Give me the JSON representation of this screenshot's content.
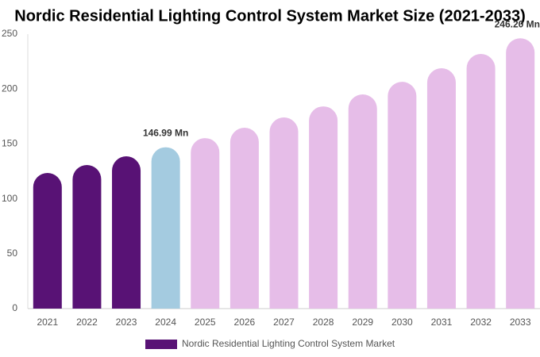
{
  "chart_data": {
    "type": "bar",
    "title": "Nordic Residential Lighting Control System Market Size (2021-2033)",
    "categories": [
      "2021",
      "2022",
      "2023",
      "2024",
      "2025",
      "2026",
      "2027",
      "2028",
      "2029",
      "2030",
      "2031",
      "2032",
      "2033"
    ],
    "series": [
      {
        "name": "Nordic Residential Lighting Control System Market",
        "color": "#581275",
        "values": [
          123.6,
          130.8,
          138.7,
          146.99,
          155.3,
          164.7,
          174.1,
          184.2,
          195.1,
          206.6,
          218.9,
          231.9,
          246.2
        ],
        "value_labels": [
          null,
          null,
          null,
          "146.99 Mn",
          null,
          null,
          null,
          null,
          null,
          null,
          null,
          null,
          "246.20 Mn"
        ],
        "colors": [
          "#581275",
          "#581275",
          "#581275",
          "#a4cbe0",
          "#e6bde8",
          "#e6bde8",
          "#e6bde8",
          "#e6bde8",
          "#e6bde8",
          "#e6bde8",
          "#e6bde8",
          "#e6bde8",
          "#e6bde8"
        ]
      }
    ],
    "ylim": [
      0,
      250
    ],
    "yticks": [
      0,
      50,
      100,
      150,
      200,
      250
    ],
    "grid": false,
    "legend": "bottom"
  }
}
